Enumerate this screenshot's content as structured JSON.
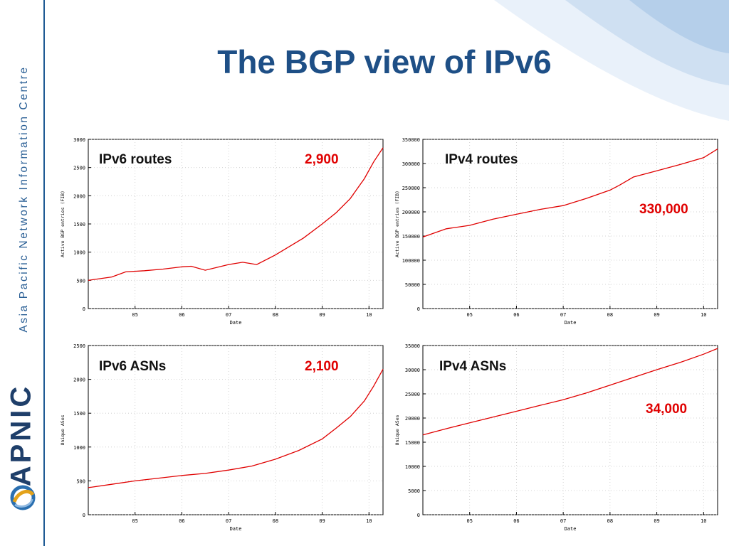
{
  "slide": {
    "title": "The BGP view of IPv6",
    "sidebar_text": "Asia Pacific Network Information Centre",
    "brand": "APNIC",
    "accent_color": "#1e4f86",
    "series_color": "#e00000"
  },
  "panels": [
    {
      "label": "IPv6 routes",
      "value": "2,900"
    },
    {
      "label": "IPv4 routes",
      "value": "330,000"
    },
    {
      "label": "IPv6 ASNs",
      "value": "2,100"
    },
    {
      "label": "IPv4 ASNs",
      "value": "34,000"
    }
  ],
  "chart_data": [
    {
      "type": "line",
      "title": "",
      "xlabel": "Date",
      "ylabel": "Active BGP entries (FIB)",
      "xlim": [
        2004.0,
        2010.3
      ],
      "ylim": [
        0,
        3000
      ],
      "yticks": [
        0,
        500,
        1000,
        1500,
        2000,
        2500,
        3000
      ],
      "xticks": [
        "05",
        "06",
        "07",
        "08",
        "09",
        "10"
      ],
      "grid": true,
      "series": [
        {
          "x": [
            2004.0,
            2004.5,
            2004.8,
            2005.2,
            2005.6,
            2006.0,
            2006.2,
            2006.5,
            2007.0,
            2007.3,
            2007.6,
            2008.0,
            2008.3,
            2008.6,
            2009.0,
            2009.3,
            2009.6,
            2009.9,
            2010.1,
            2010.3
          ],
          "y": [
            500,
            560,
            650,
            670,
            700,
            740,
            750,
            680,
            780,
            820,
            780,
            950,
            1100,
            1250,
            1500,
            1700,
            1950,
            2300,
            2600,
            2850
          ]
        }
      ]
    },
    {
      "type": "line",
      "title": "",
      "xlabel": "Date",
      "ylabel": "Active BGP entries (FIB)",
      "xlim": [
        2004.0,
        2010.3
      ],
      "ylim": [
        0,
        350000
      ],
      "yticks": [
        0,
        50000,
        100000,
        150000,
        200000,
        250000,
        300000,
        350000
      ],
      "xticks": [
        "05",
        "06",
        "07",
        "08",
        "09",
        "10"
      ],
      "grid": true,
      "series": [
        {
          "x": [
            2004.0,
            2004.5,
            2005.0,
            2005.5,
            2006.0,
            2006.5,
            2007.0,
            2007.5,
            2008.0,
            2008.2,
            2008.5,
            2009.0,
            2009.5,
            2010.0,
            2010.3
          ],
          "y": [
            148000,
            165000,
            172000,
            185000,
            195000,
            205000,
            213000,
            228000,
            245000,
            255000,
            272000,
            285000,
            298000,
            312000,
            330000
          ]
        }
      ]
    },
    {
      "type": "line",
      "title": "",
      "xlabel": "Date",
      "ylabel": "Unique ASes",
      "xlim": [
        2004.0,
        2010.3
      ],
      "ylim": [
        0,
        2500
      ],
      "yticks": [
        0,
        500,
        1000,
        1500,
        2000,
        2500
      ],
      "xticks": [
        "05",
        "06",
        "07",
        "08",
        "09",
        "10"
      ],
      "grid": true,
      "series": [
        {
          "x": [
            2004.0,
            2004.5,
            2005.0,
            2005.5,
            2006.0,
            2006.5,
            2007.0,
            2007.5,
            2008.0,
            2008.5,
            2009.0,
            2009.3,
            2009.6,
            2009.9,
            2010.1,
            2010.3
          ],
          "y": [
            400,
            450,
            500,
            540,
            580,
            610,
            660,
            720,
            820,
            950,
            1120,
            1280,
            1450,
            1680,
            1900,
            2150
          ]
        }
      ]
    },
    {
      "type": "line",
      "title": "",
      "xlabel": "Date",
      "ylabel": "Unique ASes",
      "xlim": [
        2004.0,
        2010.3
      ],
      "ylim": [
        0,
        35000
      ],
      "yticks": [
        0,
        5000,
        10000,
        15000,
        20000,
        25000,
        30000,
        35000
      ],
      "xticks": [
        "05",
        "06",
        "07",
        "08",
        "09",
        "10"
      ],
      "grid": true,
      "series": [
        {
          "x": [
            2004.0,
            2004.5,
            2005.0,
            2005.5,
            2006.0,
            2006.5,
            2007.0,
            2007.5,
            2008.0,
            2008.5,
            2009.0,
            2009.5,
            2010.0,
            2010.3
          ],
          "y": [
            16500,
            17800,
            19000,
            20200,
            21400,
            22600,
            23800,
            25200,
            26800,
            28400,
            30000,
            31500,
            33200,
            34400
          ]
        }
      ]
    }
  ]
}
